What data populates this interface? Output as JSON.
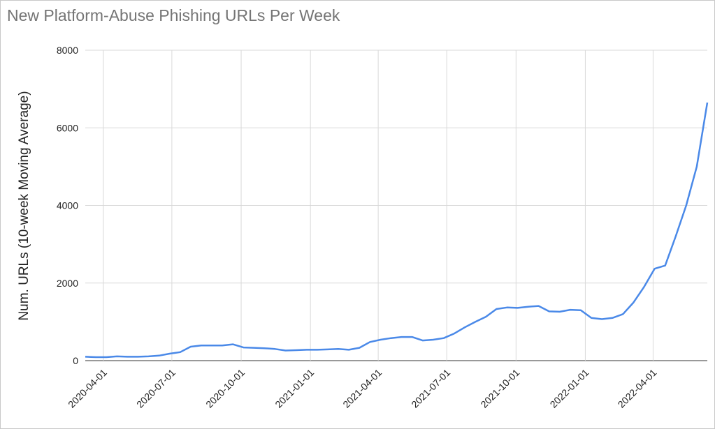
{
  "chart_data": {
    "type": "line",
    "title": "New Platform-Abuse Phishing URLs Per Week",
    "y_label": "Num. URLs (10-week Moving Average)",
    "color": "#4a89e8",
    "grid": true,
    "x": [
      "2020-03-08",
      "2020-03-22",
      "2020-04-05",
      "2020-04-19",
      "2020-05-03",
      "2020-05-17",
      "2020-05-31",
      "2020-06-14",
      "2020-06-28",
      "2020-07-12",
      "2020-07-26",
      "2020-08-09",
      "2020-08-23",
      "2020-09-06",
      "2020-09-20",
      "2020-10-04",
      "2020-10-18",
      "2020-11-01",
      "2020-11-15",
      "2020-11-29",
      "2020-12-13",
      "2020-12-27",
      "2021-01-10",
      "2021-01-24",
      "2021-02-07",
      "2021-02-21",
      "2021-03-07",
      "2021-03-21",
      "2021-04-04",
      "2021-04-18",
      "2021-05-02",
      "2021-05-16",
      "2021-05-30",
      "2021-06-13",
      "2021-06-27",
      "2021-07-11",
      "2021-07-25",
      "2021-08-08",
      "2021-08-22",
      "2021-09-05",
      "2021-09-19",
      "2021-10-03",
      "2021-10-17",
      "2021-10-31",
      "2021-11-14",
      "2021-11-28",
      "2021-12-12",
      "2021-12-26",
      "2022-01-09",
      "2022-01-23",
      "2022-02-06",
      "2022-02-20",
      "2022-03-06",
      "2022-03-20",
      "2022-04-03",
      "2022-04-17",
      "2022-05-01",
      "2022-05-15",
      "2022-05-29",
      "2022-06-12"
    ],
    "values": [
      100,
      90,
      90,
      110,
      100,
      100,
      110,
      130,
      180,
      220,
      360,
      390,
      390,
      390,
      420,
      340,
      330,
      320,
      300,
      260,
      270,
      280,
      280,
      290,
      300,
      280,
      330,
      480,
      540,
      580,
      610,
      610,
      520,
      540,
      580,
      700,
      860,
      1000,
      1130,
      1330,
      1370,
      1360,
      1390,
      1410,
      1270,
      1260,
      1310,
      1300,
      1100,
      1070,
      1100,
      1200,
      1500,
      1900,
      2370,
      2450,
      3200,
      4000,
      5000,
      6650
    ],
    "xlim": [
      "2020-03-08",
      "2022-06-12"
    ],
    "xticks": [
      "2020-04-01",
      "2020-07-01",
      "2020-10-01",
      "2021-01-01",
      "2021-04-01",
      "2021-07-01",
      "2021-10-01",
      "2022-01-01",
      "2022-04-01"
    ],
    "ylim": [
      0,
      8000
    ],
    "yticks": [
      0,
      2000,
      4000,
      6000,
      8000
    ]
  }
}
